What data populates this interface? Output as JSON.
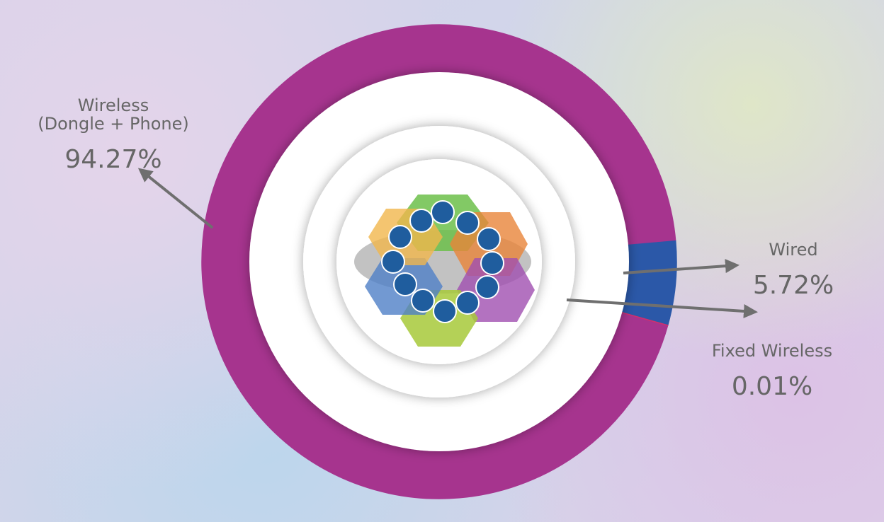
{
  "chart_data": {
    "type": "donut",
    "categories": [
      "Wireless\n(Dongle + Phone)",
      "Wired",
      "Fixed Wireless"
    ],
    "values": [
      94.27,
      5.72,
      0.01
    ],
    "value_labels": [
      "94.27%",
      "5.72%",
      "0.01%"
    ],
    "colors": [
      "#a6348e",
      "#2b58a8",
      "#d0306e"
    ]
  }
}
